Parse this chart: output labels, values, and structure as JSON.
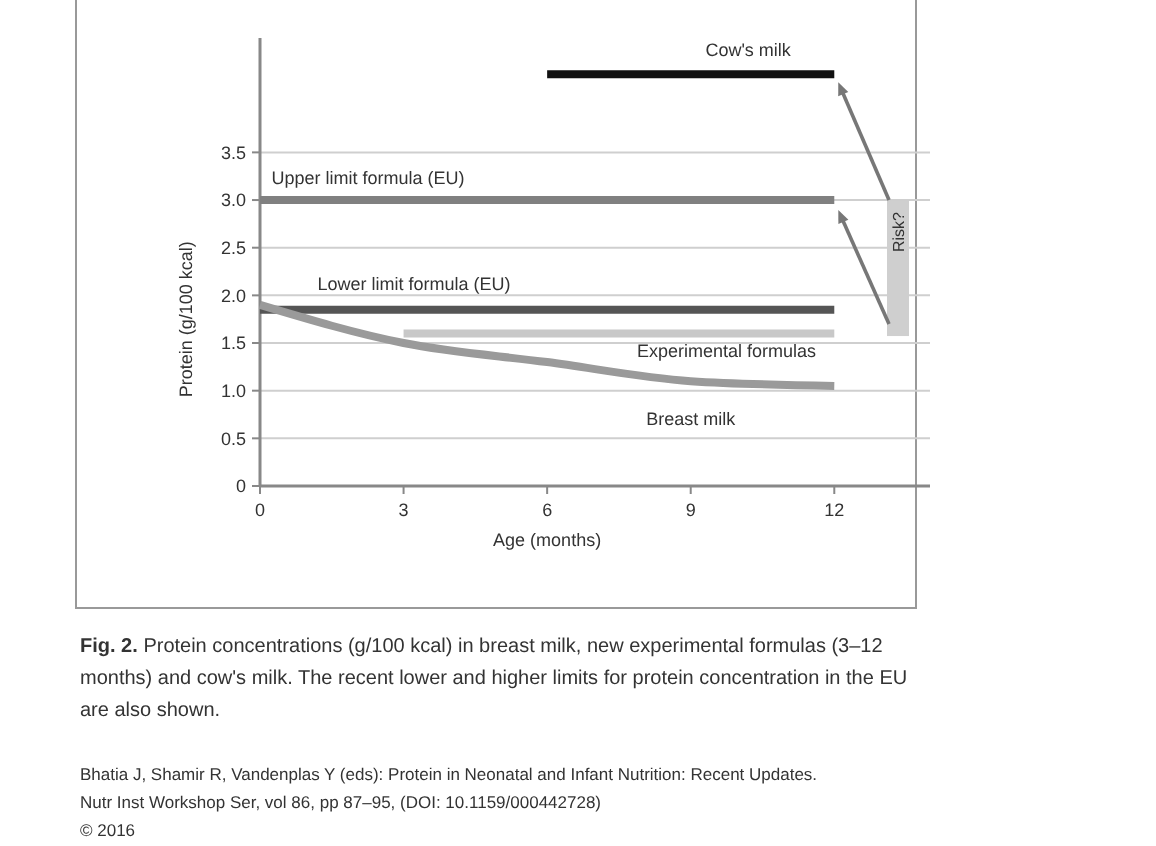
{
  "chart_data": {
    "type": "line",
    "xlabel": "Age (months)",
    "ylabel": "Protein (g/100 kcal)",
    "xlim": [
      0,
      14
    ],
    "xticks": [
      0,
      3,
      6,
      9,
      12
    ],
    "ylim": [
      0,
      4.7
    ],
    "yticks": [
      0,
      0.5,
      {
        "value": 1,
        "label": "1.0"
      },
      1.5,
      {
        "value": 2,
        "label": "2.0"
      },
      2.5,
      {
        "value": 3,
        "label": "3.0"
      },
      3.5
    ],
    "grid": "y",
    "marker": "none",
    "series": [
      {
        "name": "Cow's milk",
        "color": "#111111",
        "x": [
          6,
          12
        ],
        "values": [
          4.32,
          4.32
        ]
      },
      {
        "name": "Upper limit formula (EU)",
        "color": "#808080",
        "x": [
          0,
          12
        ],
        "values": [
          3.0,
          3.0
        ]
      },
      {
        "name": "Lower limit formula (EU)",
        "color": "#555555",
        "x": [
          0,
          12
        ],
        "values": [
          1.85,
          1.85
        ]
      },
      {
        "name": "Experimental formulas",
        "color": "#c8c8c8",
        "x": [
          3,
          12
        ],
        "values": [
          1.6,
          1.6
        ]
      },
      {
        "name": "Breast milk",
        "color": "#9a9a9a",
        "x": [
          0,
          3,
          6,
          9,
          12
        ],
        "values": [
          1.9,
          1.5,
          1.3,
          1.1,
          1.05
        ]
      }
    ],
    "annotations": [
      "Risk?",
      "Fig. 2. Protein concentrations (g/100 kcal) in breast milk, new experimental formulas (3–12 months) and cow's milk. The recent lower and higher limits for protein concentration in the EU are also shown.",
      "Bhatia J, Shamir R, Vandenplas Y (eds): Protein in Neonatal and Infant Nutrition: Recent Updates.",
      "Nutr Inst Workshop Ser, vol 86, pp 87–95, (DOI: 10.1159/000442728)",
      "© 2016"
    ]
  }
}
